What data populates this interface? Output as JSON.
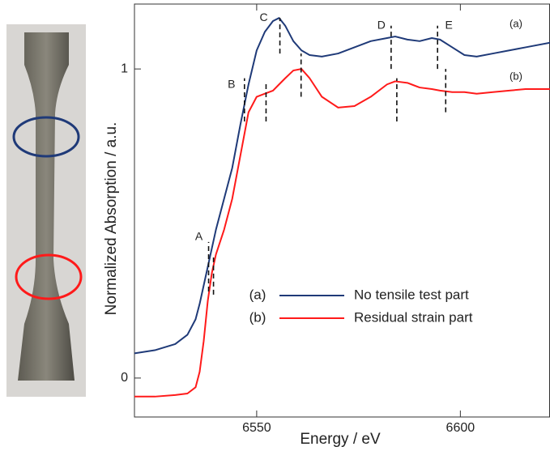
{
  "chart_data": {
    "type": "line",
    "xlabel": "Energy / eV",
    "ylabel": "Normalized Absorption / a.u.",
    "xlim": [
      6520,
      6622
    ],
    "ylim": [
      -0.126,
      1.21
    ],
    "xticks": [
      6550,
      6600
    ],
    "yticks": [
      0,
      1
    ],
    "x": [
      6520,
      6525,
      6530,
      6533,
      6535,
      6536,
      6537,
      6538,
      6539,
      6540,
      6542,
      6544,
      6546,
      6548,
      6550,
      6552,
      6554,
      6555.5,
      6557,
      6559,
      6561,
      6563,
      6566,
      6570,
      6574,
      6578,
      6582,
      6584,
      6587,
      6590,
      6593,
      6595,
      6598,
      6601,
      6604,
      6608,
      6612,
      6616,
      6622
    ],
    "series": [
      {
        "tag": "(a)",
        "name": "No tensile test part",
        "color": "#1f3a78",
        "values": [
          0.08,
          0.09,
          0.11,
          0.14,
          0.19,
          0.24,
          0.3,
          0.36,
          0.42,
          0.48,
          0.58,
          0.68,
          0.82,
          0.95,
          1.06,
          1.12,
          1.155,
          1.165,
          1.14,
          1.09,
          1.06,
          1.045,
          1.04,
          1.05,
          1.07,
          1.09,
          1.1,
          1.105,
          1.095,
          1.09,
          1.1,
          1.095,
          1.07,
          1.045,
          1.04,
          1.05,
          1.06,
          1.07,
          1.085
        ]
      },
      {
        "tag": "(b)",
        "name": "Residual strain part",
        "color": "#ff1a1a",
        "values": [
          -0.06,
          -0.06,
          -0.055,
          -0.05,
          -0.03,
          0.02,
          0.12,
          0.25,
          0.34,
          0.4,
          0.48,
          0.58,
          0.72,
          0.86,
          0.91,
          0.92,
          0.93,
          0.95,
          0.97,
          0.995,
          1.0,
          0.97,
          0.91,
          0.875,
          0.88,
          0.91,
          0.95,
          0.96,
          0.955,
          0.94,
          0.935,
          0.93,
          0.925,
          0.925,
          0.92,
          0.925,
          0.93,
          0.935,
          0.935
        ]
      }
    ],
    "markers": [
      {
        "label": "A",
        "lines": [
          {
            "x": 6538.2,
            "y": [
              0.28,
              0.44
            ]
          },
          {
            "x": 6539.4,
            "y": [
              0.27,
              0.39
            ]
          }
        ]
      },
      {
        "label": "B",
        "lines": [
          {
            "x": 6547,
            "y": [
              0.83,
              0.97
            ]
          },
          {
            "x": 6552.3,
            "y": [
              0.83,
              0.96
            ]
          }
        ]
      },
      {
        "label": "C",
        "lines": [
          {
            "x": 6555.7,
            "y": [
              1.05,
              1.165
            ]
          },
          {
            "x": 6560.9,
            "y": [
              0.91,
              1.05
            ]
          }
        ]
      },
      {
        "label": "D",
        "lines": [
          {
            "x": 6583,
            "y": [
              1.0,
              1.14
            ]
          },
          {
            "x": 6584.4,
            "y": [
              0.83,
              0.97
            ]
          }
        ]
      },
      {
        "label": "E",
        "lines": [
          {
            "x": 6594.4,
            "y": [
              1.0,
              1.14
            ]
          },
          {
            "x": 6596.4,
            "y": [
              0.86,
              1.0
            ]
          }
        ]
      }
    ],
    "legend": "lower right"
  }
}
